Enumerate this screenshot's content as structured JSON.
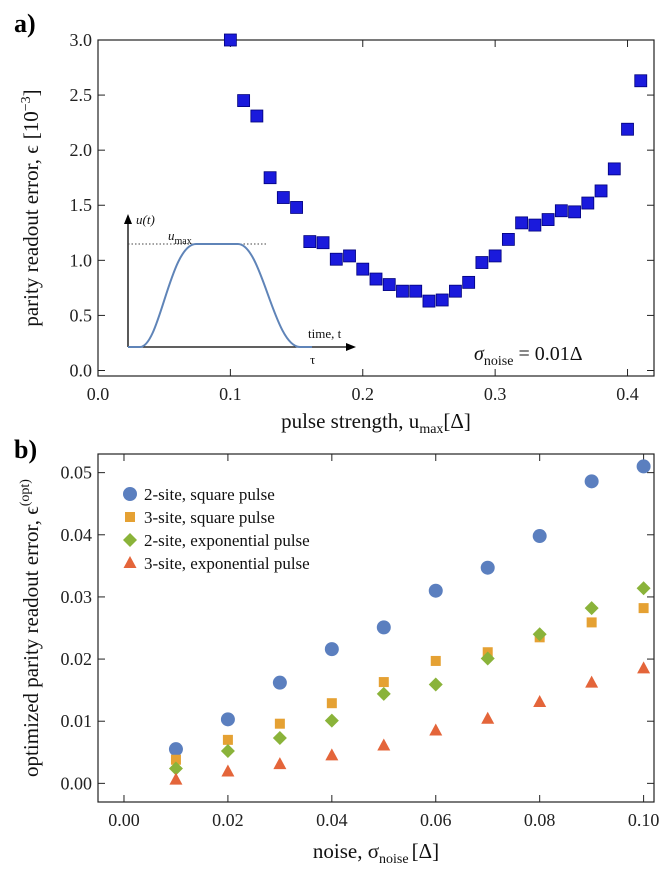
{
  "colors": {
    "panel_a_marker": "#1a1adc",
    "panel_a_marker_edge": "#00007a",
    "series_2site_square": "#5b7fbf",
    "series_3site_square": "#e5a133",
    "series_2site_exp": "#8ab33a",
    "series_3site_exp": "#e4653a",
    "inset_curve": "#5f84b8"
  },
  "panel_a": {
    "label": "a)",
    "annotation": "σ",
    "annotation_sub": "noise",
    "annotation_eq": " = 0.01Δ",
    "inset": {
      "y_label": "u(t)",
      "max_label": "u",
      "max_sub": "max",
      "x_label": "time, t",
      "tau_label": "τ"
    }
  },
  "panel_b": {
    "label": "b)"
  },
  "chart_data": [
    {
      "type": "scatter",
      "xlabel": "pulse strength, u",
      "xlabel_sub": "max",
      "xlabel_tail": "[Δ]",
      "ylabel": "parity readout error, ϵ",
      "ylabel_unit": "[10",
      "ylabel_unit_sup": "−3",
      "ylabel_unit_tail": "]",
      "xlim": [
        0.0,
        0.42
      ],
      "ylim": [
        -0.05,
        3.0
      ],
      "x_ticks": [
        0.0,
        0.1,
        0.2,
        0.3,
        0.4
      ],
      "x_tick_labels": [
        "0.0",
        "0.1",
        "0.2",
        "0.3",
        "0.4"
      ],
      "y_ticks": [
        0.0,
        0.5,
        1.0,
        1.5,
        2.0,
        2.5,
        3.0
      ],
      "y_tick_labels": [
        "0.0",
        "0.5",
        "1.0",
        "1.5",
        "2.0",
        "2.5",
        "3.0"
      ],
      "grid": false,
      "x": [
        0.1,
        0.11,
        0.12,
        0.13,
        0.14,
        0.15,
        0.16,
        0.17,
        0.18,
        0.19,
        0.2,
        0.21,
        0.22,
        0.23,
        0.24,
        0.25,
        0.26,
        0.27,
        0.28,
        0.29,
        0.3,
        0.31,
        0.32,
        0.33,
        0.34,
        0.35,
        0.36,
        0.37,
        0.38,
        0.39,
        0.4,
        0.41
      ],
      "y": [
        3.0,
        2.45,
        2.31,
        1.75,
        1.57,
        1.48,
        1.17,
        1.16,
        1.01,
        1.04,
        0.92,
        0.83,
        0.78,
        0.72,
        0.72,
        0.63,
        0.64,
        0.72,
        0.8,
        0.98,
        1.04,
        1.19,
        1.34,
        1.32,
        1.37,
        1.45,
        1.44,
        1.52,
        1.63,
        1.83,
        2.19,
        2.63
      ]
    },
    {
      "type": "scatter",
      "xlabel": "noise, σ",
      "xlabel_sub": "noise",
      "xlabel_tail": "[Δ]",
      "ylabel": "optimized parity readout error, ϵ",
      "ylabel_sup": "(opt)",
      "xlim": [
        -0.005,
        0.102
      ],
      "ylim": [
        -0.003,
        0.053
      ],
      "x_ticks": [
        0.0,
        0.02,
        0.04,
        0.06,
        0.08,
        0.1
      ],
      "x_tick_labels": [
        "0.00",
        "0.02",
        "0.04",
        "0.06",
        "0.08",
        "0.10"
      ],
      "y_ticks": [
        0.0,
        0.01,
        0.02,
        0.03,
        0.04,
        0.05
      ],
      "y_tick_labels": [
        "0.00",
        "0.01",
        "0.02",
        "0.03",
        "0.04",
        "0.05"
      ],
      "grid": false,
      "legend_position": "top-left",
      "x": [
        0.01,
        0.02,
        0.03,
        0.04,
        0.05,
        0.06,
        0.07,
        0.08,
        0.09,
        0.1
      ],
      "series": [
        {
          "name": "2-site, square pulse",
          "marker": "circle",
          "color": "#5b7fbf",
          "values": [
            0.0055,
            0.0103,
            0.0162,
            0.0216,
            0.0251,
            0.031,
            0.0347,
            0.0398,
            0.0486,
            0.051
          ]
        },
        {
          "name": "3-site, square pulse",
          "marker": "square",
          "color": "#e5a133",
          "values": [
            0.0038,
            0.007,
            0.0096,
            0.0129,
            0.0163,
            0.0197,
            0.0211,
            0.0235,
            0.0259,
            0.0282
          ]
        },
        {
          "name": "2-site, exponential pulse",
          "marker": "diamond",
          "color": "#8ab33a",
          "values": [
            0.0024,
            0.0052,
            0.0073,
            0.0101,
            0.0144,
            0.0159,
            0.0201,
            0.024,
            0.0282,
            0.0314
          ]
        },
        {
          "name": "3-site, exponential pulse",
          "marker": "triangle",
          "color": "#e4653a",
          "values": [
            0.0006,
            0.0019,
            0.0031,
            0.0045,
            0.0061,
            0.0085,
            0.0104,
            0.0131,
            0.0162,
            0.0185
          ]
        }
      ]
    }
  ]
}
